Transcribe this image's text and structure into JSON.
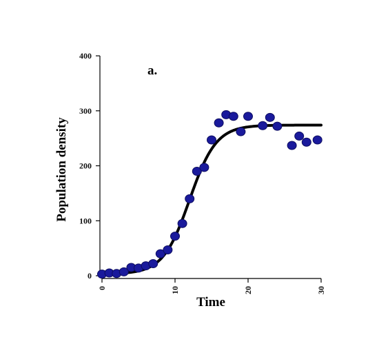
{
  "chart_data": {
    "type": "scatter",
    "annotation": "a.",
    "xlabel": "Time",
    "ylabel": "Population density",
    "xlim": [
      0,
      30
    ],
    "ylim": [
      0,
      400
    ],
    "xticks": [
      0,
      10,
      20,
      30
    ],
    "yticks": [
      0,
      100,
      200,
      300,
      400
    ],
    "grid": false,
    "colors": {
      "points": "#1a1a9c",
      "point_edge": "#0d0d60",
      "fit_line": "#000000"
    },
    "series": [
      {
        "kind": "points",
        "x": [
          0,
          1,
          2,
          3,
          4,
          5,
          6,
          7,
          8,
          9,
          10,
          11,
          12,
          13,
          14,
          15,
          16,
          17,
          18,
          19,
          20,
          22,
          23,
          24,
          26,
          27,
          28,
          29.5
        ],
        "y": [
          3,
          5,
          4,
          7,
          15,
          14,
          18,
          22,
          40,
          47,
          72,
          95,
          140,
          190,
          197,
          247,
          278,
          293,
          290,
          262,
          290,
          273,
          288,
          272,
          237,
          254,
          243,
          247
        ]
      },
      {
        "kind": "fit_line",
        "model": "logistic",
        "K": 274,
        "r": 0.55,
        "t_mid": 12,
        "y0": 3,
        "x_range": [
          0,
          30
        ]
      }
    ]
  }
}
